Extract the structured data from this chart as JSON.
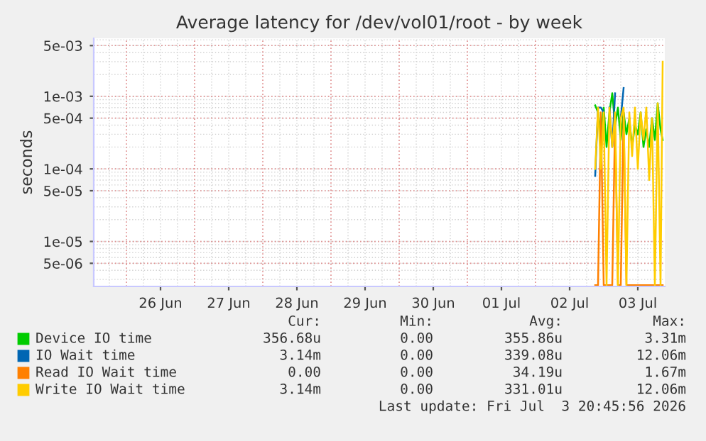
{
  "chart_data": {
    "type": "line",
    "title": "Average latency for /dev/vol01/root - by week",
    "ylabel": "seconds",
    "x": [
      "2026-07-02T21:00",
      "2026-07-02T22:00",
      "2026-07-02T23:00",
      "2026-07-03T00:00",
      "2026-07-03T01:00",
      "2026-07-03T02:00",
      "2026-07-03T03:00",
      "2026-07-03T04:00",
      "2026-07-03T05:00",
      "2026-07-03T06:00",
      "2026-07-03T07:00",
      "2026-07-03T08:00",
      "2026-07-03T09:00",
      "2026-07-03T10:00",
      "2026-07-03T11:00",
      "2026-07-03T12:00",
      "2026-07-03T13:00",
      "2026-07-03T14:00",
      "2026-07-03T15:00",
      "2026-07-03T16:00",
      "2026-07-03T17:00",
      "2026-07-03T18:00",
      "2026-07-03T19:00",
      "2026-07-03T20:00",
      "2026-07-03T20:45"
    ],
    "series": [
      {
        "name": "Device IO time",
        "color": "#00cc00",
        "values": [
          0.00075,
          0.0006,
          0.0003,
          0.0007,
          0.0002,
          0.0006,
          0.0011,
          0.0004,
          0.0007,
          0.00025,
          0.0006,
          0.0003,
          0.0005,
          0.0002,
          0.0004,
          0.0003,
          0.0006,
          0.0002,
          0.00035,
          0.0002,
          0.0005,
          0.00025,
          0.0008,
          0.00035,
          0.00025
        ]
      },
      {
        "name": "IO Wait time",
        "color": "#0066b3",
        "values": [
          8e-05,
          0.0007,
          0.0007,
          0.0006,
          null,
          0.0007,
          0.0002,
          0.0011,
          null,
          0.0005,
          0.0013,
          null,
          null,
          null,
          null,
          null,
          null,
          null,
          null,
          null,
          null,
          null,
          null,
          null,
          null
        ]
      },
      {
        "name": "Read IO Wait time",
        "color": "#ff8000",
        "values": [
          2.5e-06,
          2.5e-06,
          0.0006,
          2.5e-06,
          2.5e-06,
          2.5e-06,
          2.5e-06,
          0.0005,
          2.5e-06,
          2.5e-06,
          0.0006,
          2.5e-06,
          2.5e-06,
          2.5e-06,
          2.5e-06,
          2.5e-06,
          2.5e-06,
          2.5e-06,
          2.5e-06,
          2.5e-06,
          2.5e-06,
          2.5e-06,
          2.5e-06,
          2.5e-06,
          2.5e-06
        ]
      },
      {
        "name": "Write IO Wait time",
        "color": "#ffcc00",
        "values": [
          0.0001,
          0.0007,
          0.0001,
          0.0006,
          2.5e-06,
          0.0007,
          0.0002,
          0.0006,
          2.5e-06,
          0.0005,
          0.0007,
          2.5e-06,
          0.0006,
          0.00015,
          0.0007,
          0.0001,
          0.0006,
          0.00025,
          0.0007,
          7e-05,
          0.0005,
          2.5e-06,
          0.0008,
          2.5e-06,
          0.003
        ]
      }
    ],
    "log": "y",
    "ylim": [
      2.4e-06,
      0.0063
    ],
    "yticks": [
      {
        "value": 5e-06,
        "label": "5e-06"
      },
      {
        "value": 1e-05,
        "label": "1e-05"
      },
      {
        "value": 5e-05,
        "label": "5e-05"
      },
      {
        "value": 0.0001,
        "label": "1e-04"
      },
      {
        "value": 0.0005,
        "label": "5e-04"
      },
      {
        "value": 0.001,
        "label": "1e-03"
      },
      {
        "value": 0.005,
        "label": "5e-03"
      }
    ],
    "xlim": [
      "2026-06-25T12:30",
      "2026-07-03T21:30"
    ],
    "xticks": [
      {
        "value": "2026-06-26T12:00",
        "label": "26 Jun"
      },
      {
        "value": "2026-06-27T12:00",
        "label": "27 Jun"
      },
      {
        "value": "2026-06-28T12:00",
        "label": "28 Jun"
      },
      {
        "value": "2026-06-29T12:00",
        "label": "29 Jun"
      },
      {
        "value": "2026-06-30T12:00",
        "label": "30 Jun"
      },
      {
        "value": "2026-07-01T12:00",
        "label": "01 Jul"
      },
      {
        "value": "2026-07-02T12:00",
        "label": "02 Jul"
      },
      {
        "value": "2026-07-03T12:00",
        "label": "03 Jul"
      }
    ],
    "grid": true,
    "legend": "bottom",
    "annotations": [
      "Cur:",
      "Min:",
      "Avg:",
      "Max:",
      "356.68u",
      "0.00",
      "355.86u",
      "3.31m",
      "3.14m",
      "0.00",
      "339.08u",
      "12.06m",
      "0.00",
      "0.00",
      "34.19u",
      "1.67m",
      "3.14m",
      "0.00",
      "331.01u",
      "12.06m",
      "Last update: Fri Jul  3 20:45:56 2026"
    ]
  }
}
